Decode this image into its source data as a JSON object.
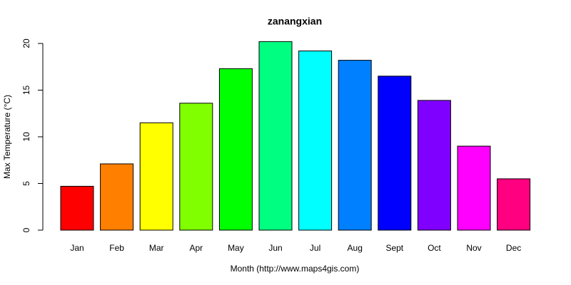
{
  "chart_data": {
    "type": "bar",
    "title": "zanangxian",
    "x_label": "Month (http://www.maps4gis.com)",
    "y_label": "Max Temperature (°C)",
    "categories": [
      "Jan",
      "Feb",
      "Mar",
      "Apr",
      "May",
      "Jun",
      "Jul",
      "Aug",
      "Sept",
      "Oct",
      "Nov",
      "Dec"
    ],
    "values": [
      4.7,
      7.1,
      11.5,
      13.6,
      17.3,
      20.2,
      19.2,
      18.2,
      16.5,
      13.9,
      9.0,
      5.5
    ],
    "colors": [
      "#FF0000",
      "#FF8000",
      "#FFFF00",
      "#80FF00",
      "#00FF00",
      "#00FF80",
      "#00FFFF",
      "#0080FF",
      "#0000FF",
      "#8000FF",
      "#FF00FF",
      "#FF0080"
    ],
    "ylim": [
      0,
      20
    ],
    "yticks": [
      0,
      5,
      10,
      15,
      20
    ],
    "grid": false
  }
}
